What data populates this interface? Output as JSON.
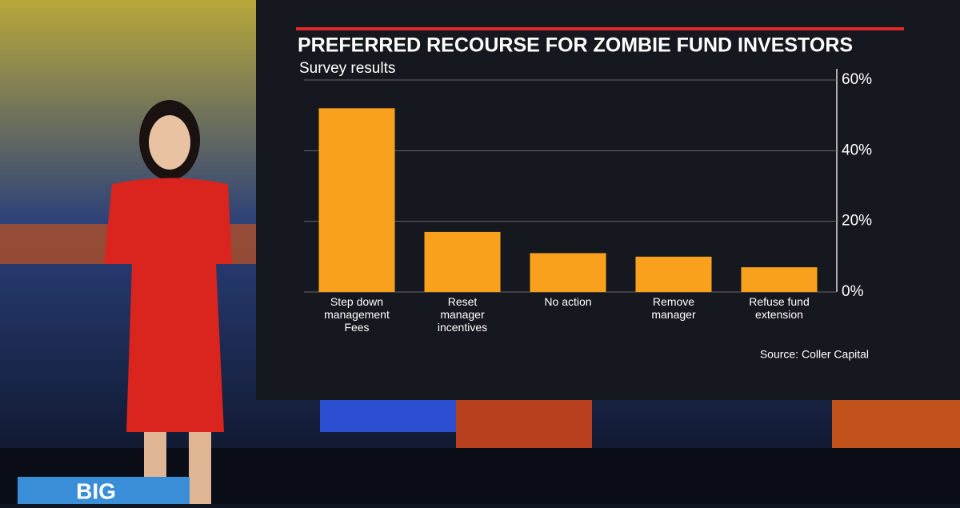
{
  "chart_data": {
    "type": "bar",
    "title": "PREFERRED RECOURSE FOR ZOMBIE FUND INVESTORS",
    "subtitle": "Survey results",
    "categories": [
      "Step down management Fees",
      "Reset manager incentives",
      "No action",
      "Remove manager",
      "Refuse fund extension"
    ],
    "values": [
      52,
      17,
      11,
      10,
      7
    ],
    "color": "#f9a11c",
    "ylim": [
      0,
      60
    ],
    "yticks": [
      {
        "value": 0,
        "label": "0%"
      },
      {
        "value": 20,
        "label": "20%"
      },
      {
        "value": 40,
        "label": "40%"
      },
      {
        "value": 60,
        "label": "60%"
      }
    ],
    "grid": true,
    "source": "Source: Coller Capital"
  },
  "logo_text": "BIG"
}
